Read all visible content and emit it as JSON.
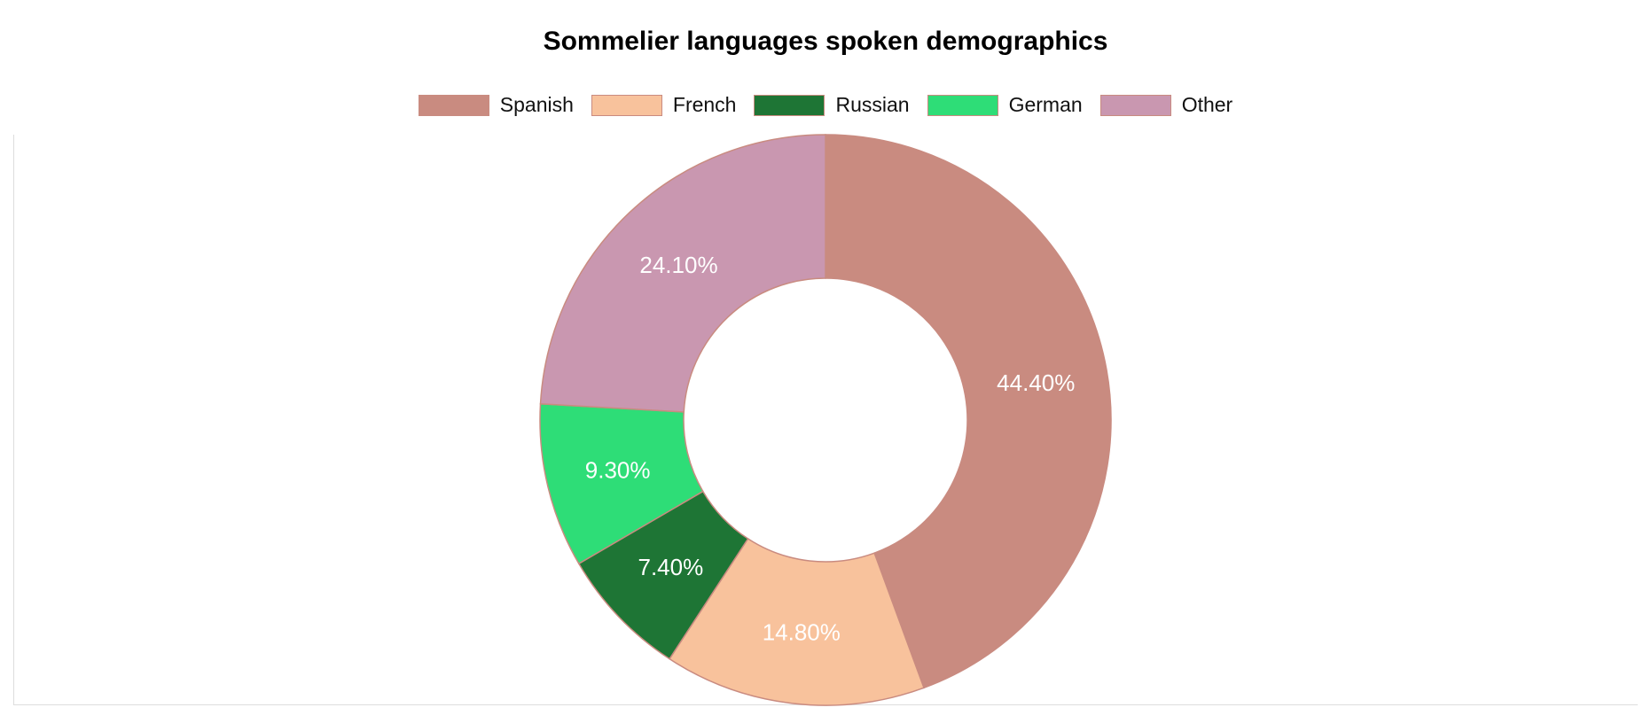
{
  "chart_data": {
    "type": "pie",
    "title": "Sommelier languages spoken demographics",
    "legend_position": "top",
    "donut": true,
    "slices": [
      {
        "label": "Spanish",
        "value": 44.4,
        "display": "44.40%",
        "color": "#c98b80"
      },
      {
        "label": "French",
        "value": 14.8,
        "display": "14.80%",
        "color": "#f8c29c"
      },
      {
        "label": "Russian",
        "value": 7.4,
        "display": "7.40%",
        "color": "#1e7535"
      },
      {
        "label": "German",
        "value": 9.3,
        "display": "9.30%",
        "color": "#2edd77"
      },
      {
        "label": "Other",
        "value": 24.1,
        "display": "24.10%",
        "color": "#c997b0"
      }
    ],
    "slice_border_color": "#c98b80"
  }
}
